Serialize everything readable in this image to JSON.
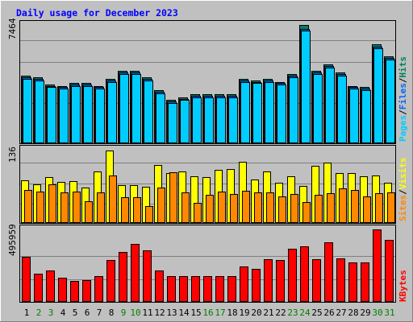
{
  "chart_data": {
    "type": "bar",
    "title": "Daily usage for December 2023",
    "categories": [
      "1",
      "2",
      "3",
      "4",
      "5",
      "6",
      "7",
      "8",
      "9",
      "10",
      "11",
      "12",
      "13",
      "14",
      "15",
      "16",
      "17",
      "18",
      "19",
      "20",
      "21",
      "22",
      "23",
      "24",
      "25",
      "26",
      "27",
      "28",
      "29",
      "30",
      "31"
    ],
    "weekend_days": [
      "2",
      "3",
      "9",
      "10",
      "16",
      "17",
      "23",
      "24",
      "30",
      "31"
    ],
    "panels": [
      {
        "id": "hits",
        "ymax_label": "7464",
        "ylim": [
          0,
          7464
        ],
        "side_labels": [
          "Pages",
          "Files",
          "Hits"
        ],
        "series": [
          {
            "name": "Hits",
            "color": "#00805c",
            "values": [
              4180,
              4080,
              3650,
              3550,
              3720,
              3720,
              3550,
              4000,
              4480,
              4480,
              4080,
              3260,
              2680,
              2850,
              3020,
              3020,
              3020,
              3020,
              4000,
              3900,
              4000,
              3800,
              4280,
              7300,
              4480,
              4860,
              4360,
              3550,
              3470,
              6100,
              5380
            ]
          },
          {
            "name": "Files",
            "color": "#0066ff",
            "values": [
              4080,
              4000,
              3550,
              3470,
              3620,
              3620,
              3470,
              3900,
              4380,
              4380,
              4000,
              3160,
              2590,
              2750,
              2940,
              2940,
              2940,
              2940,
              3900,
              3800,
              3900,
              3720,
              4180,
              7050,
              4380,
              4760,
              4280,
              3470,
              3380,
              5980,
              5280
            ]
          },
          {
            "name": "Pages",
            "color": "#00ccff",
            "values": [
              4000,
              3900,
              3470,
              3380,
              3550,
              3550,
              3380,
              3800,
              4280,
              4280,
              3900,
              3070,
              2500,
              2680,
              2850,
              2850,
              2850,
              2850,
              3800,
              3720,
              3800,
              3620,
              4080,
              6950,
              4280,
              4660,
              4180,
              3380,
              3300,
              5880,
              5180
            ]
          }
        ]
      },
      {
        "id": "visits",
        "ymax_label": "136",
        "ylim": [
          0,
          136
        ],
        "side_labels": [
          "Sites",
          "Visits"
        ],
        "series": [
          {
            "name": "Visits",
            "color": "#ffff00",
            "values": [
              76,
              70,
              82,
              74,
              75,
              63,
              92,
              130,
              68,
              68,
              65,
              104,
              90,
              93,
              84,
              82,
              95,
              97,
              110,
              78,
              92,
              72,
              84,
              66,
              102,
              108,
              90,
              90,
              84,
              85,
              73
            ]
          },
          {
            "name": "Sites",
            "color": "#ff8800",
            "values": [
              60,
              57,
              70,
              55,
              56,
              39,
              55,
              85,
              47,
              47,
              30,
              64,
              91,
              55,
              36,
              50,
              56,
              52,
              58,
              55,
              55,
              48,
              52,
              37,
              50,
              53,
              62,
              60,
              48,
              53,
              55
            ]
          }
        ]
      },
      {
        "id": "kbytes",
        "ymax_label": "495959",
        "ylim": [
          0,
          495959
        ],
        "side_labels": [
          "KBytes"
        ],
        "series": [
          {
            "name": "KBytes",
            "color": "#ff0000",
            "values": [
              300000,
              188000,
              208000,
              160000,
              138000,
              146000,
              168000,
              276000,
              332000,
              386000,
              342000,
              206000,
              168000,
              168000,
              168000,
              168000,
              168000,
              168000,
              236000,
              218000,
              280000,
              276000,
              350000,
              370000,
              284000,
              396000,
              286000,
              262000,
              262000,
              480000,
              412000
            ]
          }
        ]
      }
    ]
  },
  "colors": {
    "background": "#c0c0c0",
    "plot_background": "#c0c0c0",
    "gridline": "#808080",
    "title": "#0000ff",
    "day_label": "#000000",
    "weekend_label": "#008000"
  }
}
